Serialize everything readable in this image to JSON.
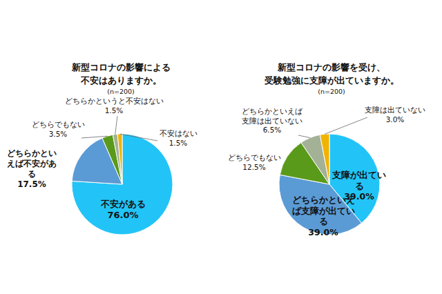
{
  "chart_data": [
    {
      "type": "pie",
      "title": "新型コロナの影響による\n不安はありますか。",
      "subtitle": "(n=200)",
      "categories": [
        "不安がある",
        "どちらかといえば不安がある",
        "どちらでもない",
        "どちらかというと不安はない",
        "不安はない"
      ],
      "values": [
        76.0,
        17.5,
        3.5,
        1.5,
        1.5
      ],
      "value_labels": [
        "76.0%",
        "17.5%",
        "3.5%",
        "1.5%",
        "1.5%"
      ],
      "colors": [
        "#22c4f7",
        "#5b9bd5",
        "#5a9a1a",
        "#a3b196",
        "#f0b400"
      ],
      "data_labels": true
    },
    {
      "type": "pie",
      "title": "新型コロナの影響を受け、\n受験勉強に支障が出ていますか。",
      "subtitle": "(n=200)",
      "categories": [
        "支障が出ている",
        "どちらかといえば支障が出ている",
        "どちらでもない",
        "どちらかといえば支障は出ていない",
        "支障は出ていない"
      ],
      "values": [
        39.0,
        39.0,
        12.5,
        6.5,
        3.0
      ],
      "value_labels": [
        "39.0%",
        "39.0%",
        "12.5%",
        "6.5%",
        "3.0%"
      ],
      "colors": [
        "#22c4f7",
        "#5b9bd5",
        "#5a9a1a",
        "#a3b196",
        "#f0b400"
      ],
      "data_labels": true
    }
  ]
}
